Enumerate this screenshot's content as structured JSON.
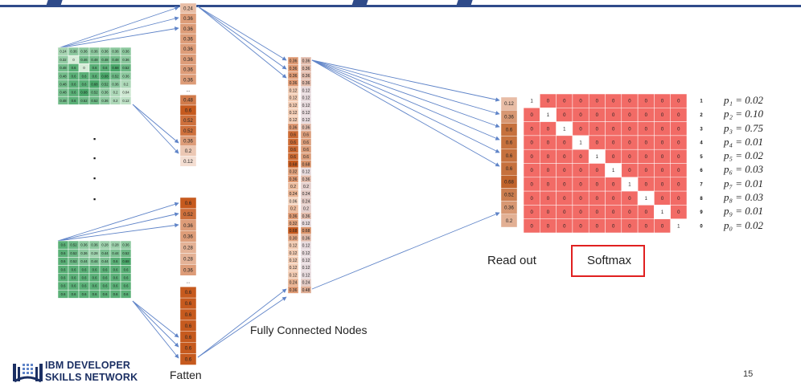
{
  "labels": {
    "read_out": "Read out",
    "softmax": "Softmax",
    "fully_connected": "Fully Connected Nodes",
    "fatten": "Fatten",
    "page_number": "15"
  },
  "logo": {
    "line1": "IBM DEVELOPER",
    "line2": "SKILLS NETWORK"
  },
  "matrix_top": [
    [
      "0.24",
      "0.36",
      "0.36",
      "0.36",
      "0.36",
      "0.36",
      "0.36"
    ],
    [
      "0.32",
      "0",
      "0.46",
      "0.48",
      "0.48",
      "0.48",
      "0.36"
    ],
    [
      "0.48",
      "0.6",
      "0",
      "0.6",
      "0.6",
      "0.68",
      "0.52"
    ],
    [
      "0.48",
      "0.6",
      "0.6",
      "0.6",
      "0.68",
      "0.52",
      "0.36"
    ],
    [
      "0.48",
      "0.6",
      "0.6",
      "0.68",
      "0.52",
      "0.36",
      "0.2"
    ],
    [
      "0.48",
      "0.6",
      "0.68",
      "0.52",
      "0.36",
      "0.2",
      "0.04"
    ],
    [
      "0.48",
      "0.6",
      "0.52",
      "0.52",
      "0.36",
      "0.2",
      "0.12"
    ]
  ],
  "matrix_bottom": [
    [
      "0.6",
      "0.52",
      "0.36",
      "0.36",
      "0.28",
      "0.28",
      "0.36"
    ],
    [
      "0.6",
      "0.52",
      "0.36",
      "0.28",
      "0.44",
      "0.44",
      "0.52"
    ],
    [
      "0.6",
      "0.52",
      "0.44",
      "0.44",
      "0.44",
      "0.6",
      "0.68"
    ],
    [
      "0.6",
      "0.6",
      "0.6",
      "0.6",
      "0.6",
      "0.6",
      "0.6"
    ],
    [
      "0.6",
      "0.6",
      "0.6",
      "0.6",
      "0.6",
      "0.6",
      "0.6"
    ],
    [
      "0.6",
      "0.6",
      "0.6",
      "0.6",
      "0.6",
      "0.6",
      "0.6"
    ],
    [
      "0.6",
      "0.6",
      "0.6",
      "0.6",
      "0.6",
      "0.6",
      "0.6"
    ]
  ],
  "flatten_top": [
    "0.24",
    "0.36",
    "0.36",
    "0.36",
    "0.36",
    "0.36",
    "0.36",
    "0.36",
    "...",
    "0.48",
    "0.6",
    "0.52",
    "0.52",
    "0.36",
    "0.2",
    "0.12"
  ],
  "flatten_bottom": [
    "0.6",
    "0.52",
    "0.36",
    "0.36",
    "0.28",
    "0.28",
    "0.36",
    "...",
    "0.6",
    "0.6",
    "0.6",
    "0.6",
    "0.6",
    "0.6",
    "0.6"
  ],
  "fc_col1": [
    "0.36",
    "0.36",
    "0.36",
    "0.36",
    "0.12",
    "0.12",
    "0.12",
    "0.12",
    "0.12",
    "0.36",
    "0.6",
    "0.6",
    "0.6",
    "0.6",
    "0.68",
    "0.32",
    "0.36",
    "0.2",
    "0.24",
    "0.06",
    "0.2",
    "0.36",
    "0.32",
    "0.68",
    "0.30",
    "0.12",
    "0.12",
    "0.12",
    "0.12",
    "0.12",
    "0.24",
    "0.36"
  ],
  "fc_col2": [
    "0.36",
    "0.36",
    "0.36",
    "0.36",
    "0.12",
    "0.12",
    "0.12",
    "0.12",
    "0.12",
    "0.36",
    "0.6",
    "0.6",
    "0.6",
    "0.6",
    "0.68",
    "0.12",
    "0.36",
    "0.2",
    "0.24",
    "0.24",
    "0.2",
    "0.36",
    "0.12",
    "0.68",
    "0.36",
    "0.12",
    "0.12",
    "0.12",
    "0.12",
    "0.12",
    "0.24",
    "0.48"
  ],
  "readout": [
    "0.12",
    "0.36",
    "0.6",
    "0.6",
    "0.6",
    "0.6",
    "0.68",
    "0.52",
    "0.36",
    "0.2"
  ],
  "onehot_labels": [
    "1",
    "2",
    "3",
    "4",
    "5",
    "6",
    "7",
    "8",
    "9",
    "0"
  ],
  "probs": [
    "p₁ = 0.02",
    "p₂ = 0.10",
    "p₃ = 0.75",
    "p₄ = 0.01",
    "p₅ = 0.02",
    "p₆ = 0.03",
    "p₇ = 0.01",
    "p₈ = 0.03",
    "p₉ = 0.01",
    "p₀ = 0.02"
  ],
  "dots": [
    "▪",
    "▪",
    "▪",
    "▪"
  ],
  "colors": {
    "green_dark": "#4aa86a",
    "green_light": "#d6ecd8",
    "orange_dark": "#c65a1e",
    "orange_light": "#f5dcc9",
    "softmax_cell": "#f26b66",
    "arrow": "#5f84c8",
    "box": "#e02020",
    "logo": "#1b2f63"
  }
}
